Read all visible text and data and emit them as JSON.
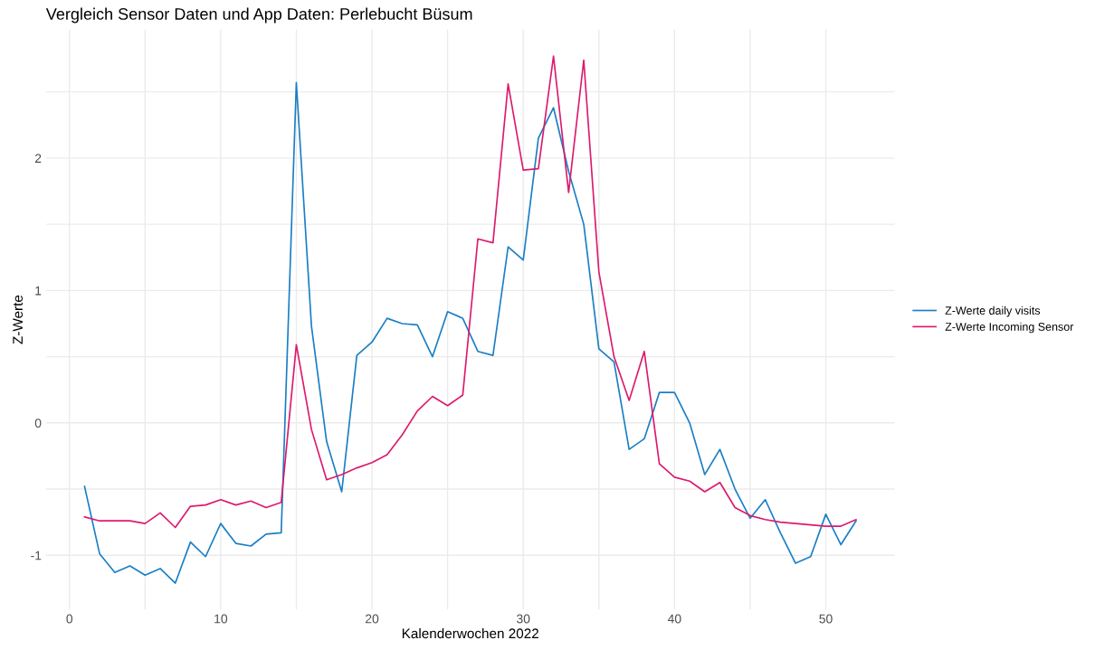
{
  "chart_data": {
    "type": "line",
    "title": "Vergleich Sensor Daten und App Daten: Perlebucht Büsum",
    "xlabel": "Kalenderwochen 2022",
    "ylabel": "Z-Werte",
    "x": [
      1,
      2,
      3,
      4,
      5,
      6,
      7,
      8,
      9,
      10,
      11,
      12,
      13,
      14,
      15,
      16,
      17,
      18,
      19,
      20,
      21,
      22,
      23,
      24,
      25,
      26,
      27,
      28,
      29,
      30,
      31,
      32,
      33,
      34,
      35,
      36,
      37,
      38,
      39,
      40,
      41,
      42,
      43,
      44,
      45,
      46,
      47,
      48,
      49,
      50,
      51,
      52
    ],
    "series": [
      {
        "name": "Z-Werte daily visits",
        "color": "#1a7fc4",
        "values": [
          -0.48,
          -0.99,
          -1.13,
          -1.08,
          -1.15,
          -1.1,
          -1.21,
          -0.9,
          -1.01,
          -0.76,
          -0.91,
          -0.93,
          -0.84,
          -0.83,
          2.57,
          0.73,
          -0.14,
          -0.52,
          0.51,
          0.61,
          0.79,
          0.75,
          0.74,
          0.5,
          0.84,
          0.79,
          0.54,
          0.51,
          1.33,
          1.23,
          2.15,
          2.38,
          1.9,
          1.5,
          0.56,
          0.46,
          -0.2,
          -0.12,
          0.23,
          0.23,
          0.0,
          -0.39,
          -0.2,
          -0.5,
          -0.72,
          -0.58,
          -0.83,
          -1.06,
          -1.01,
          -0.69,
          -0.92,
          -0.74
        ]
      },
      {
        "name": "Z-Werte Incoming Sensor",
        "color": "#dc1a6e",
        "values": [
          -0.71,
          -0.74,
          -0.74,
          -0.74,
          -0.76,
          -0.68,
          -0.79,
          -0.63,
          -0.62,
          -0.58,
          -0.62,
          -0.59,
          -0.64,
          -0.6,
          0.59,
          -0.05,
          -0.43,
          -0.39,
          -0.34,
          -0.3,
          -0.24,
          -0.09,
          0.09,
          0.2,
          0.13,
          0.21,
          1.39,
          1.36,
          2.56,
          1.91,
          1.92,
          2.77,
          1.74,
          2.74,
          1.14,
          0.5,
          0.17,
          0.54,
          -0.31,
          -0.41,
          -0.44,
          -0.52,
          -0.45,
          -0.64,
          -0.7,
          -0.73,
          -0.75,
          -0.76,
          -0.77,
          -0.78,
          -0.78,
          -0.73
        ]
      }
    ],
    "xlim": [
      -1.55,
      54.55
    ],
    "ylim": [
      -1.41,
      2.97
    ],
    "xticks": [
      0,
      {
        "value": 5,
        "label": null
      },
      10,
      {
        "value": 15,
        "label": null
      },
      20,
      {
        "value": 25,
        "label": null
      },
      30,
      {
        "value": 35,
        "label": null
      },
      40,
      {
        "value": 45,
        "label": null
      },
      50
    ],
    "yticks": [
      -1,
      {
        "value": -0.5,
        "label": null
      },
      0,
      {
        "value": 0.5,
        "label": null
      },
      1,
      {
        "value": 1.5,
        "label": null
      },
      2,
      {
        "value": 2.5,
        "label": null
      }
    ],
    "grid": true,
    "legend": "right",
    "line_style": "solid",
    "marker": "none"
  }
}
